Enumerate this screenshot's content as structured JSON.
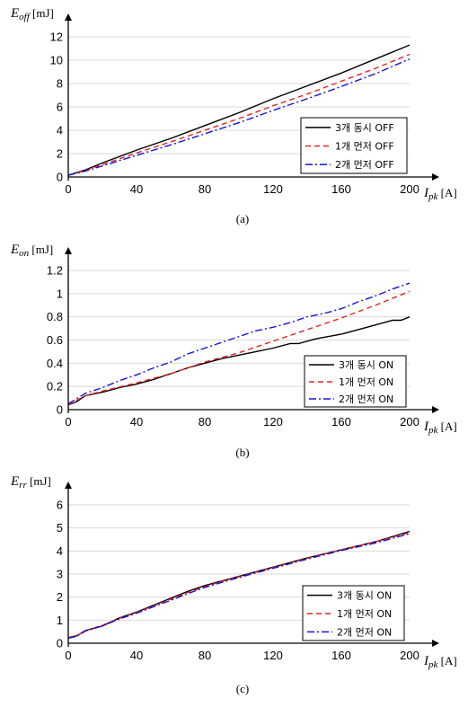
{
  "colors": {
    "grid": "#d9d9d9",
    "axis": "#000000",
    "s1": "#000000",
    "s2": "#e8211f",
    "s3": "#1414d9",
    "legend_border": "#000000"
  },
  "chart_data": [
    {
      "type": "line",
      "panel": {
        "caption": "(a)",
        "ylabel_main": "E",
        "ylabel_sub": "off",
        "ylabel_unit": " [mJ]",
        "xlabel_main": "I",
        "xlabel_sub": "pk",
        "xlabel_unit": " [A]"
      },
      "xlim": [
        0,
        200
      ],
      "ylim": [
        0,
        12
      ],
      "xticks": [
        0,
        40,
        80,
        120,
        160,
        200
      ],
      "yticks": [
        0,
        2,
        4,
        6,
        8,
        10,
        12
      ],
      "ytick_labels": [
        "0",
        "2",
        "4",
        "6",
        "8",
        "10",
        "12"
      ],
      "grid": true,
      "legend_position": "bottom-right",
      "series": [
        {
          "name": "3개 동시 OFF",
          "style": "solid",
          "x": [
            0,
            10,
            20,
            40,
            60,
            80,
            100,
            120,
            140,
            160,
            180,
            200
          ],
          "y": [
            0.15,
            0.6,
            1.2,
            2.3,
            3.3,
            4.4,
            5.5,
            6.7,
            7.8,
            8.9,
            10.1,
            11.3
          ]
        },
        {
          "name": "1개 먼저 OFF",
          "style": "dashed",
          "x": [
            0,
            10,
            20,
            40,
            60,
            80,
            100,
            120,
            140,
            160,
            180,
            200
          ],
          "y": [
            0.15,
            0.55,
            1.05,
            2.05,
            3.0,
            4.0,
            5.0,
            6.1,
            7.1,
            8.2,
            9.3,
            10.5
          ]
        },
        {
          "name": "2개 먼저 OFF",
          "style": "dashdot",
          "x": [
            0,
            10,
            20,
            40,
            60,
            80,
            100,
            120,
            140,
            160,
            180,
            200
          ],
          "y": [
            0.15,
            0.5,
            0.95,
            1.85,
            2.75,
            3.7,
            4.65,
            5.7,
            6.7,
            7.75,
            8.85,
            10.1
          ]
        }
      ]
    },
    {
      "type": "line",
      "panel": {
        "caption": "(b)",
        "ylabel_main": "E",
        "ylabel_sub": "on",
        "ylabel_unit": " [mJ]",
        "xlabel_main": "I",
        "xlabel_sub": "pk",
        "xlabel_unit": " [A]"
      },
      "xlim": [
        0,
        200
      ],
      "ylim": [
        0,
        1.2
      ],
      "xticks": [
        0,
        40,
        80,
        120,
        160,
        200
      ],
      "yticks": [
        0,
        0.2,
        0.4,
        0.6,
        0.8,
        1.0,
        1.2
      ],
      "ytick_labels": [
        "0",
        "0.2",
        "0.4",
        "0.6",
        "0.8",
        "1",
        "1.2"
      ],
      "grid": true,
      "legend_position": "bottom-right",
      "series": [
        {
          "name": "3개 동시 ON",
          "style": "solid",
          "x": [
            0,
            5,
            10,
            20,
            30,
            40,
            50,
            60,
            70,
            80,
            90,
            100,
            110,
            120,
            130,
            135,
            145,
            160,
            175,
            180,
            190,
            195,
            200
          ],
          "y": [
            0.04,
            0.07,
            0.12,
            0.15,
            0.19,
            0.22,
            0.26,
            0.31,
            0.36,
            0.4,
            0.44,
            0.47,
            0.5,
            0.53,
            0.57,
            0.57,
            0.61,
            0.65,
            0.71,
            0.73,
            0.77,
            0.77,
            0.8
          ]
        },
        {
          "name": "1개 먼저 ON",
          "style": "dashed",
          "x": [
            0,
            10,
            20,
            40,
            60,
            80,
            100,
            120,
            140,
            160,
            180,
            200
          ],
          "y": [
            0.04,
            0.12,
            0.16,
            0.23,
            0.31,
            0.41,
            0.49,
            0.59,
            0.69,
            0.79,
            0.9,
            1.02
          ]
        },
        {
          "name": "2개 먼저 ON",
          "style": "dashdot",
          "x": [
            0,
            10,
            20,
            30,
            40,
            50,
            60,
            70,
            80,
            90,
            100,
            110,
            120,
            130,
            140,
            150,
            160,
            170,
            180,
            190,
            200
          ],
          "y": [
            0.05,
            0.14,
            0.19,
            0.25,
            0.3,
            0.36,
            0.41,
            0.48,
            0.53,
            0.58,
            0.63,
            0.68,
            0.71,
            0.75,
            0.8,
            0.83,
            0.87,
            0.93,
            0.98,
            1.04,
            1.09
          ]
        }
      ]
    },
    {
      "type": "line",
      "panel": {
        "caption": "(c)",
        "ylabel_main": "E",
        "ylabel_sub": "rr",
        "ylabel_unit": " [mJ]",
        "xlabel_main": "I",
        "xlabel_sub": "pk",
        "xlabel_unit": " [A]"
      },
      "xlim": [
        0,
        200
      ],
      "ylim": [
        0,
        6
      ],
      "xticks": [
        0,
        40,
        80,
        120,
        160,
        200
      ],
      "yticks": [
        0,
        1,
        2,
        3,
        4,
        5,
        6
      ],
      "ytick_labels": [
        "0",
        "1",
        "2",
        "3",
        "4",
        "5",
        "6"
      ],
      "grid": true,
      "legend_position": "bottom-right",
      "series": [
        {
          "name": "3개 동시 ON",
          "style": "solid",
          "x": [
            0,
            5,
            10,
            20,
            30,
            40,
            50,
            60,
            70,
            80,
            90,
            100,
            110,
            120,
            140,
            160,
            180,
            200
          ],
          "y": [
            0.25,
            0.32,
            0.55,
            0.75,
            1.1,
            1.35,
            1.65,
            1.95,
            2.25,
            2.5,
            2.7,
            2.9,
            3.1,
            3.3,
            3.7,
            4.05,
            4.4,
            4.85
          ]
        },
        {
          "name": "1개 먼저 ON",
          "style": "dashed",
          "x": [
            0,
            5,
            10,
            20,
            30,
            40,
            50,
            60,
            70,
            80,
            90,
            100,
            110,
            120,
            140,
            160,
            180,
            200
          ],
          "y": [
            0.25,
            0.33,
            0.55,
            0.78,
            1.08,
            1.33,
            1.62,
            1.9,
            2.2,
            2.45,
            2.68,
            2.88,
            3.08,
            3.28,
            3.68,
            4.05,
            4.4,
            4.8
          ]
        },
        {
          "name": "2개 먼저 ON",
          "style": "dashdot",
          "x": [
            0,
            5,
            10,
            20,
            30,
            40,
            50,
            60,
            70,
            80,
            90,
            100,
            110,
            120,
            140,
            160,
            180,
            200
          ],
          "y": [
            0.22,
            0.3,
            0.53,
            0.75,
            1.05,
            1.3,
            1.58,
            1.86,
            2.15,
            2.42,
            2.64,
            2.85,
            3.05,
            3.25,
            3.65,
            4.02,
            4.35,
            4.75
          ]
        }
      ]
    }
  ]
}
